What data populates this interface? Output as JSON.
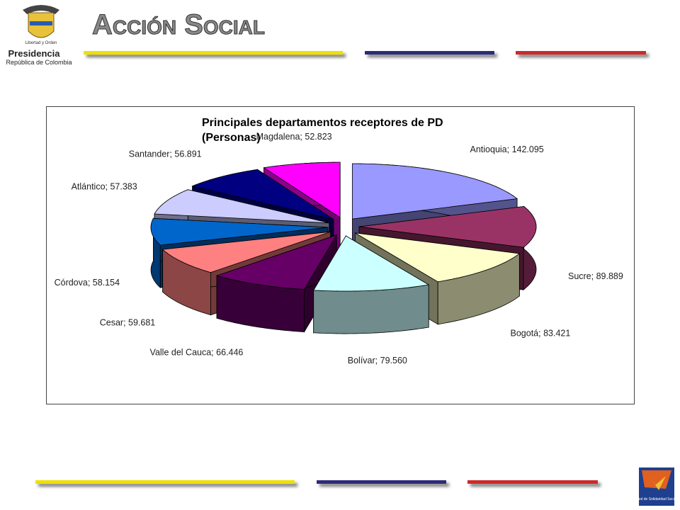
{
  "header": {
    "brand": "Acción Social",
    "motto": "Libertad y Orden",
    "org": "Presidencia",
    "country": "República de Colombia"
  },
  "footer": {
    "logo_text": "Red de Solidaridad Social"
  },
  "chart_data": {
    "type": "pie",
    "title": "Principales departamentos receptores de PD (Personas)",
    "categories": [
      "Antioquia",
      "Sucre",
      "Bogotá",
      "Bolívar",
      "Valle del Cauca",
      "Cesar",
      "Córdova",
      "Atlántico",
      "Santander",
      "Magdalena"
    ],
    "values": [
      142095,
      89889,
      83421,
      79560,
      66446,
      59681,
      58154,
      57383,
      56891,
      52823
    ],
    "value_labels": [
      "Antioquia; 142.095",
      "Sucre; 89.889",
      "Bogotá; 83.421",
      "Bolívar; 79.560",
      "Valle del Cauca; 66.446",
      "Cesar; 59.681",
      "Córdova; 58.154",
      "Atlántico; 57.383",
      "Santander; 56.891",
      "Magdalena; 52.823"
    ],
    "colors": [
      "#9999ff",
      "#993366",
      "#ffffcc",
      "#ccffff",
      "#660066",
      "#ff8080",
      "#0066cc",
      "#ccccff",
      "#000080",
      "#ff00ff"
    ]
  }
}
